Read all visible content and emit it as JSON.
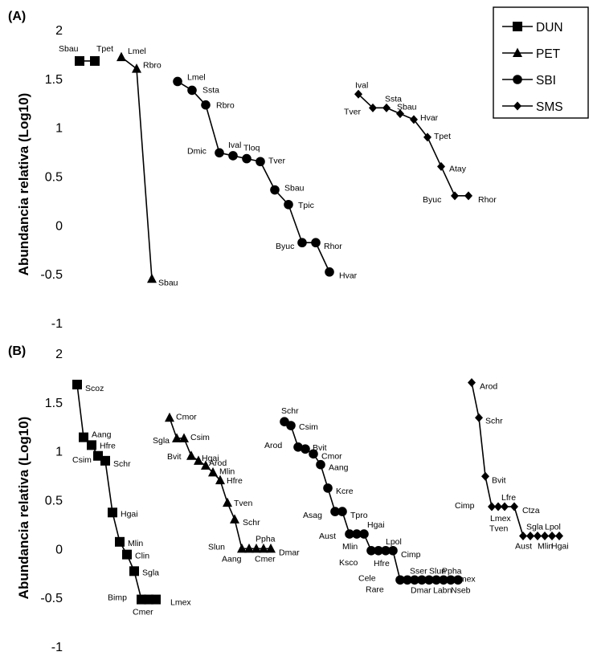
{
  "legend": {
    "entries": [
      {
        "series": "DUN",
        "marker": "square"
      },
      {
        "series": "PET",
        "marker": "triangle"
      },
      {
        "series": "SBI",
        "marker": "circle"
      },
      {
        "series": "SMS",
        "marker": "diamond"
      }
    ]
  },
  "chart_data": [
    {
      "panel": "(A)",
      "type": "line",
      "ylabel": "Abundancia relativa (Log10)",
      "yticks": [
        2,
        1.5,
        1,
        0.5,
        0,
        -0.5,
        -1
      ],
      "ylim": [
        -1,
        2
      ],
      "series": [
        {
          "name": "DUN",
          "marker": "square",
          "points": [
            {
              "label": "Sbau",
              "y": 1.68,
              "rank": 1
            },
            {
              "label": "Tpet",
              "y": 1.68,
              "rank": 2
            }
          ]
        },
        {
          "name": "PET",
          "marker": "triangle",
          "points": [
            {
              "label": "Lmel",
              "y": 1.72,
              "rank": 1
            },
            {
              "label": "Rbro",
              "y": 1.6,
              "rank": 2
            },
            {
              "label": "Sbau",
              "y": -0.55,
              "rank": 3
            }
          ]
        },
        {
          "name": "SBI",
          "marker": "circle",
          "points": [
            {
              "label": "Lmel",
              "y": 1.47,
              "rank": 1
            },
            {
              "label": "Ssta",
              "y": 1.38,
              "rank": 2
            },
            {
              "label": "Rbro",
              "y": 1.23,
              "rank": 3
            },
            {
              "label": "Dmic",
              "y": 0.74,
              "rank": 4
            },
            {
              "label": "Ival",
              "y": 0.71,
              "rank": 5
            },
            {
              "label": "Tloq",
              "y": 0.68,
              "rank": 6
            },
            {
              "label": "Tver",
              "y": 0.65,
              "rank": 7
            },
            {
              "label": "Sbau",
              "y": 0.36,
              "rank": 8
            },
            {
              "label": "Tpic",
              "y": 0.21,
              "rank": 9
            },
            {
              "label": "Byuc",
              "y": -0.18,
              "rank": 10
            },
            {
              "label": "Rhor",
              "y": -0.18,
              "rank": 11
            },
            {
              "label": "Hvar",
              "y": -0.48,
              "rank": 12
            }
          ]
        },
        {
          "name": "SMS",
          "marker": "diamond",
          "points": [
            {
              "label": "Ival",
              "y": 1.34,
              "rank": 1
            },
            {
              "label": "Tver",
              "y": 1.2,
              "rank": 2
            },
            {
              "label": "Ssta",
              "y": 1.2,
              "rank": 3
            },
            {
              "label": "Sbau",
              "y": 1.14,
              "rank": 4
            },
            {
              "label": "Hvar",
              "y": 1.08,
              "rank": 5
            },
            {
              "label": "Tpet",
              "y": 0.9,
              "rank": 6
            },
            {
              "label": "Atay",
              "y": 0.6,
              "rank": 7
            },
            {
              "label": "Byuc",
              "y": 0.3,
              "rank": 8
            },
            {
              "label": "Rhor",
              "y": 0.3,
              "rank": 9
            }
          ]
        }
      ]
    },
    {
      "panel": "(B)",
      "type": "line",
      "ylabel": "Abundancia relativa (Log10)",
      "yticks": [
        2,
        1.5,
        1,
        0.5,
        0,
        -0.5,
        -1
      ],
      "ylim": [
        -1,
        2
      ],
      "series": [
        {
          "name": "DUN",
          "marker": "square",
          "points": [
            {
              "label": "Scoz",
              "y": 1.68,
              "rank": 1
            },
            {
              "label": "Aang",
              "y": 1.14,
              "rank": 2
            },
            {
              "label": "Hfre",
              "y": 1.06,
              "rank": 3
            },
            {
              "label": "Csim",
              "y": 0.95,
              "rank": 4
            },
            {
              "label": "Schr",
              "y": 0.9,
              "rank": 5
            },
            {
              "label": "Hgai",
              "y": 0.37,
              "rank": 6
            },
            {
              "label": "Mlin",
              "y": 0.07,
              "rank": 7
            },
            {
              "label": "Clin",
              "y": -0.06,
              "rank": 8
            },
            {
              "label": "Sgla",
              "y": -0.23,
              "rank": 9
            },
            {
              "label": "Bimp",
              "y": -0.52,
              "rank": 10
            },
            {
              "label": "Cmer",
              "y": -0.52,
              "rank": 11
            },
            {
              "label": "Lmex",
              "y": -0.52,
              "rank": 12
            }
          ]
        },
        {
          "name": "PET",
          "marker": "triangle",
          "points": [
            {
              "label": "Cmor",
              "y": 1.34,
              "rank": 1
            },
            {
              "label": "Sgla",
              "y": 1.13,
              "rank": 2
            },
            {
              "label": "Csim",
              "y": 1.13,
              "rank": 3
            },
            {
              "label": "Bvit",
              "y": 0.95,
              "rank": 4
            },
            {
              "label": "Hgai",
              "y": 0.9,
              "rank": 5
            },
            {
              "label": "Arod",
              "y": 0.85,
              "rank": 6
            },
            {
              "label": "Mlin",
              "y": 0.78,
              "rank": 7
            },
            {
              "label": "Hfre",
              "y": 0.7,
              "rank": 8
            },
            {
              "label": "Tven",
              "y": 0.47,
              "rank": 9
            },
            {
              "label": "Schr",
              "y": 0.3,
              "rank": 10
            },
            {
              "label": "Slun",
              "y": 0.0,
              "rank": 11
            },
            {
              "label": "Aang",
              "y": 0.0,
              "rank": 12
            },
            {
              "label": "Cmer",
              "y": 0.0,
              "rank": 13
            },
            {
              "label": "Ppha",
              "y": 0.0,
              "rank": 14
            },
            {
              "label": "Dmar",
              "y": 0.0,
              "rank": 15
            }
          ]
        },
        {
          "name": "SBI",
          "marker": "circle",
          "points": [
            {
              "label": "Schr",
              "y": 1.3,
              "rank": 1
            },
            {
              "label": "Csim",
              "y": 1.26,
              "rank": 2
            },
            {
              "label": "Arod",
              "y": 1.04,
              "rank": 3
            },
            {
              "label": "Bvit",
              "y": 1.02,
              "rank": 4
            },
            {
              "label": "Cmor",
              "y": 0.97,
              "rank": 5
            },
            {
              "label": "Aang",
              "y": 0.86,
              "rank": 6
            },
            {
              "label": "Kcre",
              "y": 0.62,
              "rank": 7
            },
            {
              "label": "Asag",
              "y": 0.38,
              "rank": 8
            },
            {
              "label": "Tpro",
              "y": 0.38,
              "rank": 9
            },
            {
              "label": "Aust",
              "y": 0.15,
              "rank": 10
            },
            {
              "label": "Mlin",
              "y": 0.15,
              "rank": 11
            },
            {
              "label": "Hgai",
              "y": 0.15,
              "rank": 12
            },
            {
              "label": "Ksco",
              "y": -0.02,
              "rank": 13
            },
            {
              "label": "Hfre",
              "y": -0.02,
              "rank": 14
            },
            {
              "label": "Lpol",
              "y": -0.02,
              "rank": 15
            },
            {
              "label": "Cimp",
              "y": -0.02,
              "rank": 16
            },
            {
              "label": "Cele",
              "y": -0.32,
              "rank": 17
            },
            {
              "label": "Rare",
              "y": -0.32,
              "rank": 18
            },
            {
              "label": "Sser",
              "y": -0.32,
              "rank": 19
            },
            {
              "label": "Dmar",
              "y": -0.32,
              "rank": 20
            },
            {
              "label": "Slun",
              "y": -0.32,
              "rank": 21
            },
            {
              "label": "Labn",
              "y": -0.32,
              "rank": 22
            },
            {
              "label": "Ppha",
              "y": -0.32,
              "rank": 23
            },
            {
              "label": "Nseb",
              "y": -0.32,
              "rank": 24
            },
            {
              "label": "Lmex",
              "y": -0.32,
              "rank": 25
            }
          ]
        },
        {
          "name": "SMS",
          "marker": "diamond",
          "points": [
            {
              "label": "Arod",
              "y": 1.7,
              "rank": 1
            },
            {
              "label": "Schr",
              "y": 1.34,
              "rank": 2
            },
            {
              "label": "Bvit",
              "y": 0.74,
              "rank": 3
            },
            {
              "label": "Cimp",
              "y": 0.43,
              "rank": 4
            },
            {
              "label": "Lmex",
              "y": 0.43,
              "rank": 5
            },
            {
              "label": "Lfre",
              "y": 0.43,
              "rank": 6
            },
            {
              "label": "Ctza",
              "y": 0.43,
              "rank": 7
            },
            {
              "label": "Tven",
              "y": 0.13,
              "rank": 8
            },
            {
              "label": "Sgla",
              "y": 0.13,
              "rank": 9
            },
            {
              "label": "Aust",
              "y": 0.13,
              "rank": 10
            },
            {
              "label": "Lpol",
              "y": 0.13,
              "rank": 11
            },
            {
              "label": "Mlin",
              "y": 0.13,
              "rank": 12
            },
            {
              "label": "Hgai",
              "y": 0.13,
              "rank": 13
            }
          ]
        }
      ]
    }
  ]
}
